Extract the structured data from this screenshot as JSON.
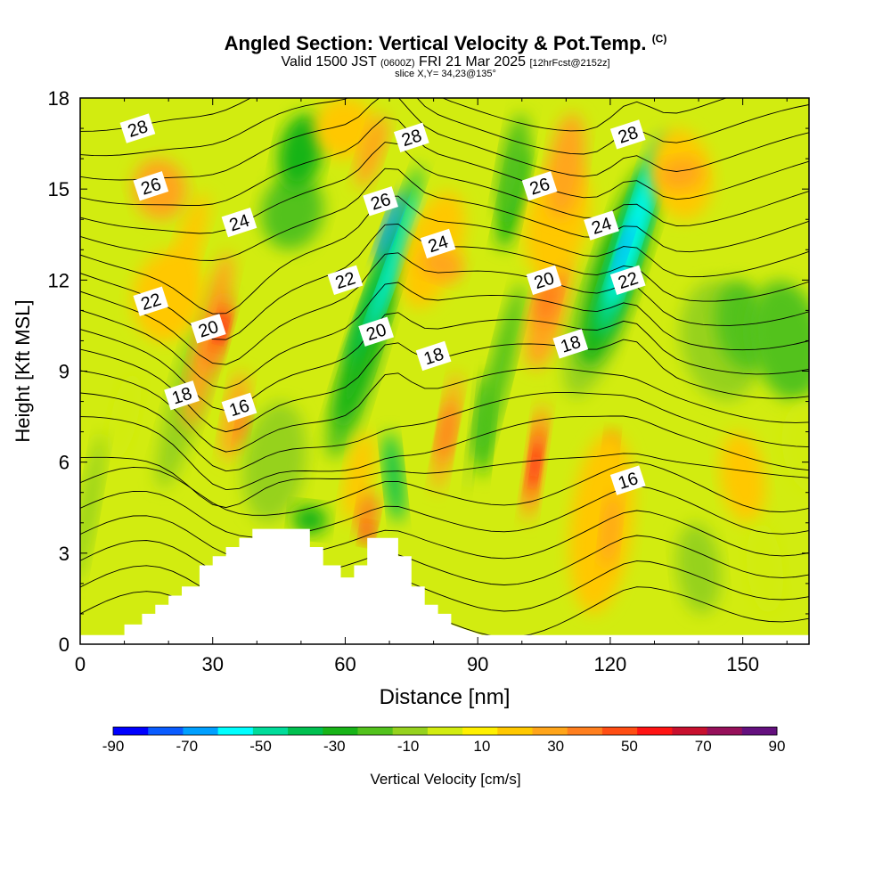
{
  "title": {
    "main": "Angled Section: Vertical Velocity & Pot.Temp.",
    "copyright": "(C)",
    "valid_prefix": "Valid 1500 JST",
    "utc": "(0600Z)",
    "valid_date": "FRI 21 Mar 2025",
    "forecast": "[12hrFcst@2152z]",
    "slice": "slice X,Y= 34,23@135°"
  },
  "chart_data": {
    "type": "heatmap",
    "xlabel": "Distance [nm]",
    "ylabel": "Height [Kft MSL]",
    "xlim": [
      0,
      165
    ],
    "ylim": [
      0,
      18
    ],
    "xticks": [
      0,
      30,
      60,
      90,
      120,
      150
    ],
    "yticks": [
      0,
      3,
      6,
      9,
      12,
      15,
      18
    ],
    "colorbar": {
      "label": "Vertical Velocity [cm/s]",
      "ticks": [
        -90,
        -70,
        -50,
        -30,
        -10,
        10,
        30,
        50,
        70,
        90
      ],
      "bounds": [
        -90,
        -80,
        -70,
        -60,
        -50,
        -40,
        -30,
        -20,
        -10,
        0,
        10,
        20,
        30,
        40,
        50,
        60,
        70,
        80,
        90
      ],
      "colors": [
        "#0000ff",
        "#0a5cff",
        "#00a0ff",
        "#00ffff",
        "#00dc9a",
        "#00c050",
        "#18b418",
        "#52c21c",
        "#96d21e",
        "#d2ec10",
        "#fff000",
        "#ffc800",
        "#ffa51a",
        "#ff7f1e",
        "#ff4e14",
        "#ff1414",
        "#c8102e",
        "#96105a",
        "#64107e"
      ]
    },
    "terrain": {
      "x": [
        0,
        10,
        10,
        14,
        14,
        17,
        17,
        20,
        20,
        23,
        23,
        27,
        27,
        30,
        30,
        33,
        33,
        36,
        36,
        39,
        39,
        42,
        42,
        46,
        46,
        52,
        52,
        55,
        55,
        59,
        59,
        62,
        62,
        65,
        65,
        72,
        72,
        75,
        75,
        78,
        78,
        81,
        81,
        84,
        84,
        91,
        165
      ],
      "y": [
        0.3,
        0.3,
        0.65,
        0.65,
        1.0,
        1.0,
        1.3,
        1.3,
        1.6,
        1.6,
        1.9,
        1.9,
        2.6,
        2.6,
        2.9,
        2.9,
        3.2,
        3.2,
        3.5,
        3.5,
        3.8,
        3.8,
        3.8,
        3.8,
        3.8,
        3.8,
        3.2,
        3.2,
        2.6,
        2.6,
        2.2,
        2.2,
        2.6,
        2.6,
        3.5,
        3.5,
        2.9,
        2.9,
        1.9,
        1.9,
        1.3,
        1.3,
        1.0,
        1.0,
        0.65,
        0.3,
        0.3
      ]
    },
    "theta_contour_labels": [
      {
        "value": "28",
        "x": 13,
        "y": 17.0
      },
      {
        "value": "26",
        "x": 16,
        "y": 15.1
      },
      {
        "value": "24",
        "x": 36,
        "y": 13.9
      },
      {
        "value": "22",
        "x": 16,
        "y": 11.3
      },
      {
        "value": "20",
        "x": 29,
        "y": 10.4
      },
      {
        "value": "18",
        "x": 23,
        "y": 8.2
      },
      {
        "value": "16",
        "x": 36,
        "y": 7.8
      },
      {
        "value": "28",
        "x": 75,
        "y": 16.7
      },
      {
        "value": "26",
        "x": 68,
        "y": 14.6
      },
      {
        "value": "22",
        "x": 60,
        "y": 12.0
      },
      {
        "value": "20",
        "x": 67,
        "y": 10.3
      },
      {
        "value": "24",
        "x": 81,
        "y": 13.2
      },
      {
        "value": "18",
        "x": 80,
        "y": 9.5
      },
      {
        "value": "26",
        "x": 104,
        "y": 15.1
      },
      {
        "value": "20",
        "x": 105,
        "y": 12.0
      },
      {
        "value": "18",
        "x": 111,
        "y": 9.9
      },
      {
        "value": "28",
        "x": 124,
        "y": 16.8
      },
      {
        "value": "24",
        "x": 118,
        "y": 13.8
      },
      {
        "value": "22",
        "x": 124,
        "y": 12.0
      },
      {
        "value": "16",
        "x": 124,
        "y": 5.4
      }
    ],
    "velocity_cells": [
      {
        "x": 0,
        "y": 0,
        "value": 5
      }
    ]
  }
}
